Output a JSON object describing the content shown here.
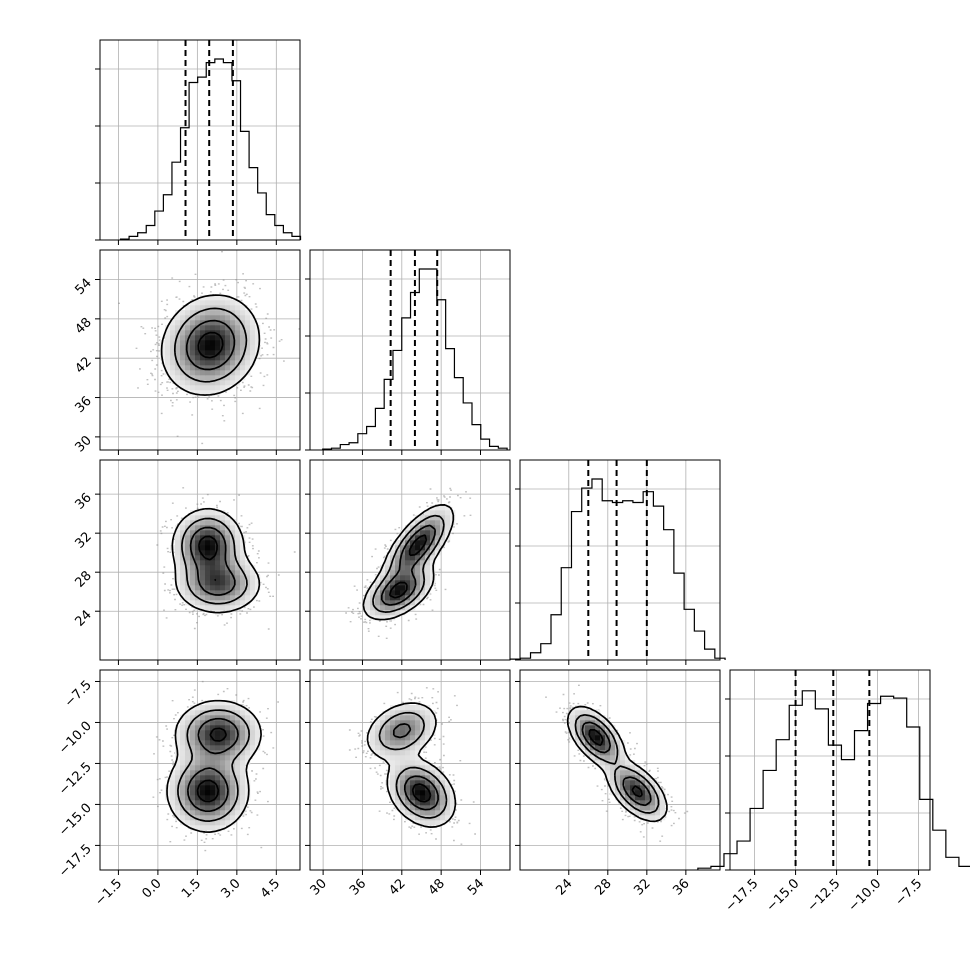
{
  "chart_data": {
    "type": "corner",
    "parameters": [
      {
        "mean": 2.0,
        "sd": 0.9,
        "range": [
          -2.2,
          5.4
        ],
        "ticks": [
          "-1.5",
          "0.0",
          "1.5",
          "3.0",
          "4.5"
        ],
        "tick_values": [
          -1.5,
          0.0,
          1.5,
          3.0,
          4.5
        ],
        "quantiles": [
          1.05,
          1.95,
          2.85
        ]
      },
      {
        "mean": 44.0,
        "sd": 3.7,
        "range": [
          28.0,
          58.5
        ],
        "ticks": [
          "30",
          "36",
          "42",
          "48",
          "54"
        ],
        "tick_values": [
          30,
          36,
          42,
          48,
          54
        ],
        "quantiles": [
          40.3,
          44.0,
          47.4
        ]
      },
      {
        "mean": 29.0,
        "sd": 2.9,
        "range": [
          19.0,
          39.5
        ],
        "ticks": [
          "24",
          "28",
          "32",
          "36"
        ],
        "tick_values": [
          24,
          28,
          32,
          36
        ],
        "quantiles": [
          26.0,
          28.9,
          32.0
        ]
      },
      {
        "mean": -12.6,
        "sd": 2.2,
        "range": [
          -19.0,
          -6.8
        ],
        "ticks": [
          "-17.5",
          "-15.0",
          "-12.5",
          "-10.0",
          "-7.5"
        ],
        "tick_values": [
          -17.5,
          -15.0,
          -12.5,
          -10.0,
          -7.5
        ],
        "quantiles": [
          -15.0,
          -12.7,
          -10.5
        ]
      }
    ],
    "histograms": [
      {
        "counts": [
          0.005,
          0.02,
          0.04,
          0.08,
          0.16,
          0.25,
          0.43,
          0.62,
          0.87,
          0.9,
          0.98,
          1.0,
          0.98,
          0.88,
          0.6,
          0.4,
          0.26,
          0.14,
          0.08,
          0.04,
          0.02
        ]
      },
      {
        "counts": [
          0.005,
          0.01,
          0.03,
          0.04,
          0.09,
          0.13,
          0.23,
          0.39,
          0.55,
          0.73,
          0.87,
          1.0,
          1.0,
          0.83,
          0.56,
          0.4,
          0.26,
          0.14,
          0.06,
          0.02,
          0.01
        ]
      },
      {
        "counts": [
          0.005,
          0.01,
          0.04,
          0.09,
          0.25,
          0.51,
          0.82,
          0.95,
          1.0,
          0.88,
          0.87,
          0.88,
          0.87,
          0.93,
          0.85,
          0.72,
          0.48,
          0.28,
          0.16,
          0.06,
          0.01
        ]
      },
      {
        "counts": [
          0.01,
          0.02,
          0.09,
          0.16,
          0.34,
          0.55,
          0.72,
          0.91,
          0.99,
          0.89,
          0.69,
          0.61,
          0.77,
          0.92,
          0.96,
          0.95,
          0.79,
          0.39,
          0.22,
          0.07,
          0.02
        ]
      }
    ],
    "pairs": [
      {
        "row": 1,
        "col": 0,
        "modes": [
          {
            "mx": 2.0,
            "my": 44.0,
            "sx": 0.9,
            "sy": 3.7,
            "r": 0.12,
            "w": 1
          }
        ]
      },
      {
        "row": 2,
        "col": 0,
        "modes": [
          {
            "mx": 1.9,
            "my": 30.8,
            "sx": 0.65,
            "sy": 1.8,
            "r": 0.0,
            "w": 0.55
          },
          {
            "mx": 2.3,
            "my": 26.8,
            "sx": 0.8,
            "sy": 1.5,
            "r": 0.0,
            "w": 0.45
          }
        ]
      },
      {
        "row": 2,
        "col": 1,
        "modes": [
          {
            "mx": 44.5,
            "my": 30.8,
            "sx": 2.6,
            "sy": 2.0,
            "r": 0.7,
            "w": 0.55
          },
          {
            "mx": 41.5,
            "my": 26.0,
            "sx": 2.6,
            "sy": 1.4,
            "r": 0.5,
            "w": 0.45
          }
        ]
      },
      {
        "row": 3,
        "col": 0,
        "modes": [
          {
            "mx": 2.3,
            "my": -10.7,
            "sx": 0.8,
            "sy": 1.0,
            "r": 0.0,
            "w": 0.45
          },
          {
            "mx": 1.9,
            "my": -14.2,
            "sx": 0.75,
            "sy": 1.2,
            "r": 0.0,
            "w": 0.55
          }
        ]
      },
      {
        "row": 3,
        "col": 1,
        "modes": [
          {
            "mx": 42.0,
            "my": -10.5,
            "sx": 2.8,
            "sy": 0.9,
            "r": 0.3,
            "w": 0.4
          },
          {
            "mx": 45.0,
            "my": -14.3,
            "sx": 2.5,
            "sy": 1.0,
            "r": -0.3,
            "w": 0.6
          }
        ]
      },
      {
        "row": 3,
        "col": 2,
        "modes": [
          {
            "mx": 26.8,
            "my": -10.9,
            "sx": 1.4,
            "sy": 0.9,
            "r": -0.55,
            "w": 0.5
          },
          {
            "mx": 31.0,
            "my": -14.2,
            "sx": 1.5,
            "sy": 0.9,
            "r": -0.55,
            "w": 0.5
          }
        ]
      }
    ]
  }
}
